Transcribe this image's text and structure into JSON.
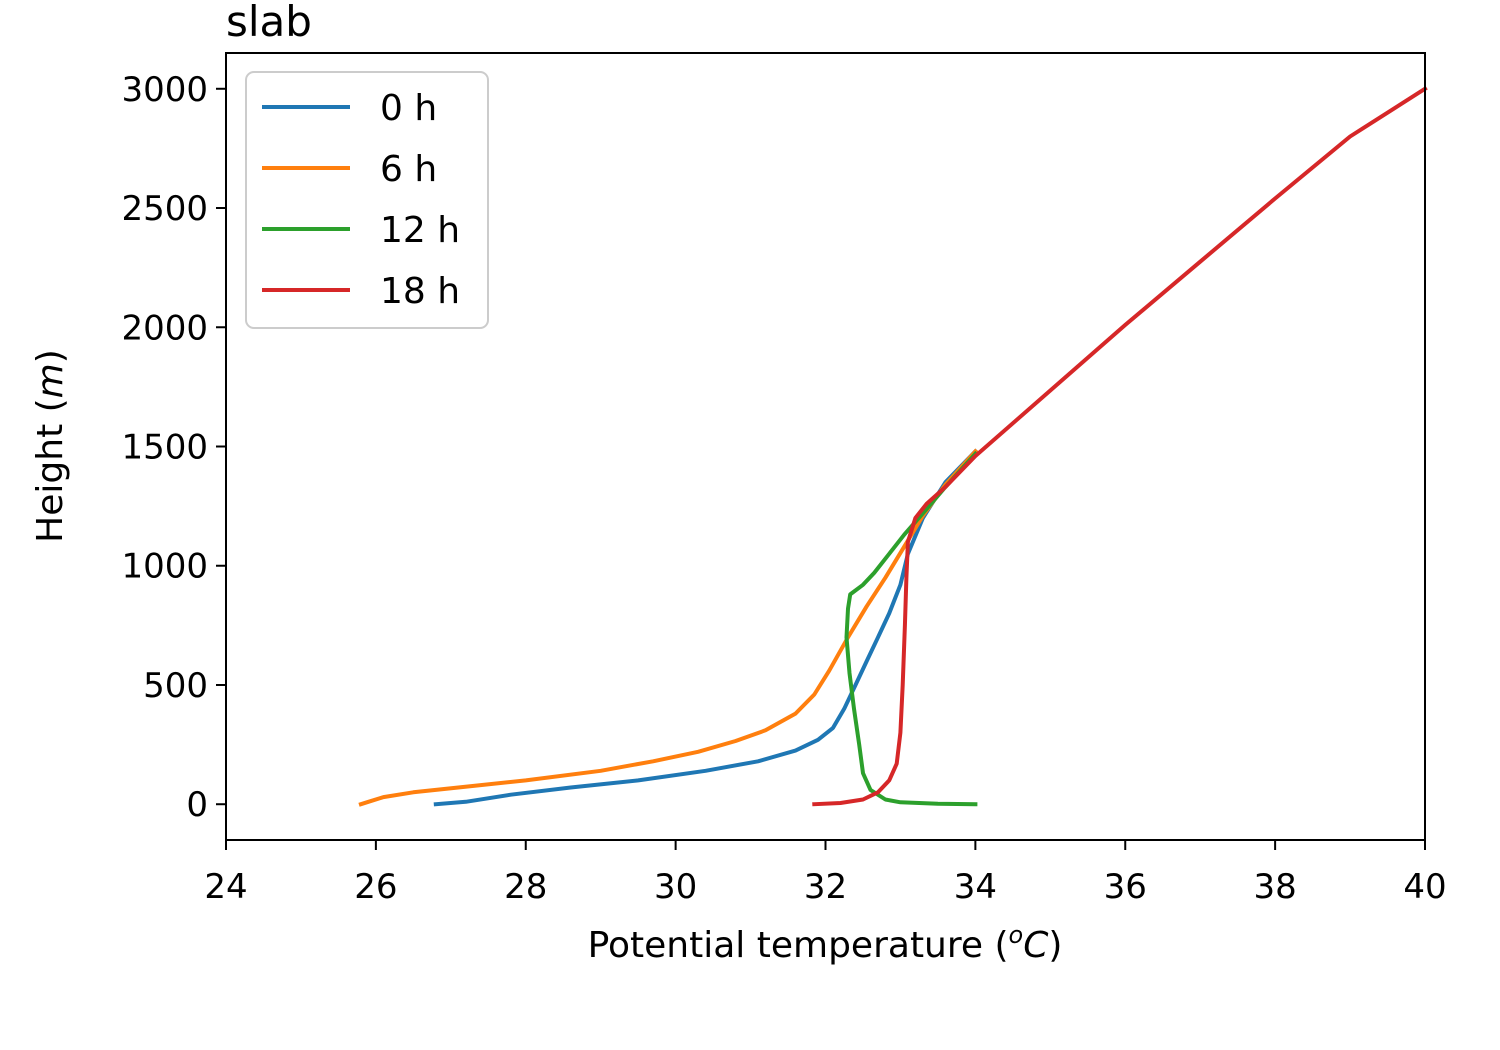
{
  "chart_data": {
    "type": "line",
    "title": "slab",
    "xlabel_main": "Potential temperature (",
    "xlabel_unit_sup": "o",
    "xlabel_unit": "C",
    "xlabel_close": ")",
    "ylabel_main": "Height (",
    "ylabel_unit": "m",
    "ylabel_close": ")",
    "xlim": [
      24,
      40
    ],
    "ylim": [
      -150,
      3150
    ],
    "xticks": [
      24,
      26,
      28,
      30,
      32,
      34,
      36,
      38,
      40
    ],
    "yticks": [
      0,
      500,
      1000,
      1500,
      2000,
      2500,
      3000
    ],
    "grid": false,
    "legend_position": "upper-left",
    "series": [
      {
        "name": "0 h",
        "color": "#1f77b4",
        "points": [
          [
            26.8,
            0
          ],
          [
            27.2,
            10
          ],
          [
            27.8,
            40
          ],
          [
            28.6,
            70
          ],
          [
            29.5,
            100
          ],
          [
            30.4,
            140
          ],
          [
            31.1,
            180
          ],
          [
            31.6,
            225
          ],
          [
            31.9,
            270
          ],
          [
            32.1,
            320
          ],
          [
            32.25,
            400
          ],
          [
            32.4,
            500
          ],
          [
            32.55,
            600
          ],
          [
            32.7,
            700
          ],
          [
            32.85,
            800
          ],
          [
            33.0,
            920
          ],
          [
            33.1,
            1050
          ],
          [
            33.3,
            1200
          ],
          [
            33.6,
            1350
          ],
          [
            34.0,
            1480
          ]
        ]
      },
      {
        "name": "6 h",
        "color": "#ff7f0e",
        "points": [
          [
            25.8,
            0
          ],
          [
            25.9,
            10
          ],
          [
            26.1,
            30
          ],
          [
            26.5,
            50
          ],
          [
            27.1,
            70
          ],
          [
            28.0,
            100
          ],
          [
            29.0,
            140
          ],
          [
            29.7,
            180
          ],
          [
            30.3,
            220
          ],
          [
            30.8,
            265
          ],
          [
            31.2,
            310
          ],
          [
            31.6,
            380
          ],
          [
            31.85,
            460
          ],
          [
            32.05,
            560
          ],
          [
            32.3,
            700
          ],
          [
            32.55,
            830
          ],
          [
            32.8,
            950
          ],
          [
            33.05,
            1080
          ],
          [
            33.3,
            1210
          ],
          [
            33.6,
            1340
          ],
          [
            34.0,
            1480
          ]
        ]
      },
      {
        "name": "12 h",
        "color": "#2ca02c",
        "points": [
          [
            34.0,
            0
          ],
          [
            33.5,
            2
          ],
          [
            33.0,
            8
          ],
          [
            32.8,
            20
          ],
          [
            32.6,
            60
          ],
          [
            32.5,
            130
          ],
          [
            32.45,
            250
          ],
          [
            32.38,
            400
          ],
          [
            32.32,
            550
          ],
          [
            32.28,
            700
          ],
          [
            32.3,
            820
          ],
          [
            32.33,
            880
          ],
          [
            32.5,
            920
          ],
          [
            32.65,
            970
          ],
          [
            32.85,
            1050
          ],
          [
            33.05,
            1130
          ],
          [
            33.3,
            1220
          ],
          [
            33.6,
            1330
          ],
          [
            34.0,
            1470
          ]
        ]
      },
      {
        "name": "18 h",
        "color": "#d62728",
        "points": [
          [
            31.85,
            0
          ],
          [
            32.2,
            5
          ],
          [
            32.5,
            20
          ],
          [
            32.7,
            50
          ],
          [
            32.85,
            100
          ],
          [
            32.95,
            170
          ],
          [
            33.0,
            300
          ],
          [
            33.03,
            500
          ],
          [
            33.06,
            750
          ],
          [
            33.08,
            950
          ],
          [
            33.1,
            1100
          ],
          [
            33.2,
            1200
          ],
          [
            33.35,
            1260
          ],
          [
            33.6,
            1330
          ],
          [
            34.0,
            1460
          ],
          [
            35.0,
            1735
          ],
          [
            36.0,
            2010
          ],
          [
            37.0,
            2275
          ],
          [
            38.0,
            2540
          ],
          [
            39.0,
            2800
          ],
          [
            40.0,
            3000
          ]
        ]
      }
    ]
  }
}
